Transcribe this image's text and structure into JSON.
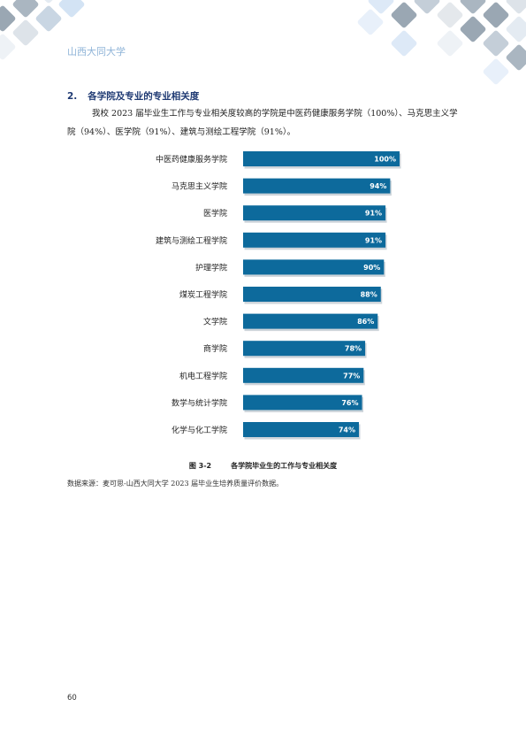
{
  "header": {
    "school_name": "山西大同大学"
  },
  "section": {
    "number": "2.",
    "title": "各学院及专业的专业相关度",
    "paragraph": "我校 2023 届毕业生工作与专业相关度较高的学院是中医药健康服务学院（100%）、马克思主义学院（94%）、医学院（91%）、建筑与测绘工程学院（91%）。"
  },
  "chart_data": {
    "type": "bar",
    "orientation": "horizontal",
    "categories": [
      "中医药健康服务学院",
      "马克思主义学院",
      "医学院",
      "建筑与测绘工程学院",
      "护理学院",
      "煤炭工程学院",
      "文学院",
      "商学院",
      "机电工程学院",
      "数学与统计学院",
      "化学与化工学院"
    ],
    "values": [
      100,
      94,
      91,
      91,
      90,
      88,
      86,
      78,
      77,
      76,
      74
    ],
    "value_labels": [
      "100%",
      "94%",
      "91%",
      "91%",
      "90%",
      "88%",
      "86%",
      "78%",
      "77%",
      "76%",
      "74%"
    ],
    "xlim": [
      0,
      100
    ],
    "bar_color": "#0d6a9c",
    "grid": false,
    "title": "",
    "xlabel": "",
    "ylabel": ""
  },
  "figure": {
    "number": "图 3-2",
    "caption": "各学院毕业生的工作与专业相关度"
  },
  "source_note": "数据来源：麦可思-山西大同大学 2023 届毕业生培养质量评价数据。",
  "page_number": "60",
  "colors": {
    "heading": "#1f3a73",
    "school_name": "#8fb4d8",
    "bar": "#0d6a9c",
    "deco_dark": "#9aa7b3",
    "deco_mid": "#c4ced8",
    "deco_light": "#dde9f7"
  }
}
